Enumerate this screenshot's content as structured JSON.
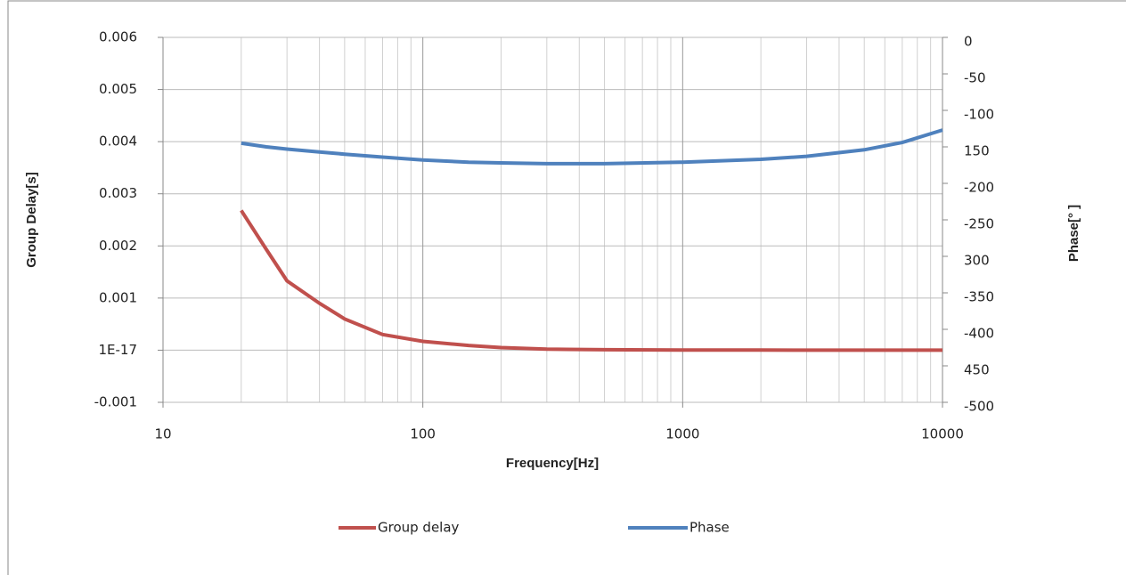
{
  "chart_data": {
    "type": "line",
    "x_label": "Frequency[Hz]",
    "y_label": "Group Delay[s]",
    "y2_label": "Phase[° ]",
    "x": [
      20,
      25,
      30,
      40,
      50,
      70,
      100,
      150,
      200,
      300,
      500,
      1000,
      2000,
      3000,
      5000,
      7000,
      10000
    ],
    "series": [
      {
        "name": "Group delay",
        "color": "#c0504d",
        "values": [
          0.00268,
          0.00193,
          0.00133,
          0.0009,
          0.0006,
          0.0003,
          0.00017,
          9e-05,
          5e-05,
          2e-05,
          1e-05,
          3e-06,
          2e-06,
          1e-06,
          1e-06,
          1e-06,
          1e-06
        ]
      },
      {
        "name": "Phase",
        "color": "#4f81bd",
        "axis": "y2",
        "values": [
          -145,
          -150,
          -153,
          -157,
          -160,
          -164,
          -168,
          -171,
          -172,
          -173,
          -173,
          -171,
          -167,
          -163,
          -154,
          -144,
          -127
        ]
      }
    ],
    "log_x": true,
    "grid": true,
    "xlim": [
      10,
      10000
    ],
    "xticks": [
      10,
      100,
      1000,
      10000
    ],
    "ylim": [
      -0.001,
      0.006
    ],
    "yticks": [
      -0.001,
      {
        "value": 1e-17,
        "label": "1E-17"
      },
      0.001,
      0.002,
      0.003,
      0.004,
      0.005,
      0.006
    ],
    "y2lim": [
      -500,
      0
    ],
    "y2ticks": [
      -500,
      {
        "value": -450,
        "label": "450"
      },
      -400,
      -350,
      {
        "value": -300,
        "label": "300"
      },
      -250,
      -200,
      {
        "value": -150,
        "label": "150"
      },
      -100,
      -50,
      0
    ],
    "legend": "bottom"
  }
}
